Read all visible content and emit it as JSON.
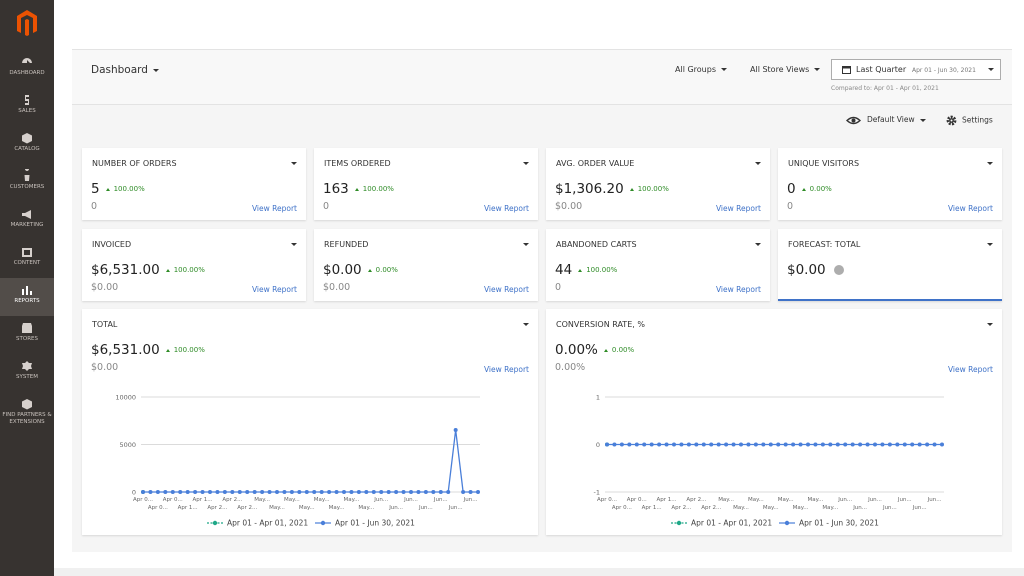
{
  "sidebar": {
    "items": [
      "DASHBOARD",
      "SALES",
      "CATALOG",
      "CUSTOMERS",
      "MARKETING",
      "CONTENT",
      "REPORTS",
      "STORES",
      "SYSTEM",
      "FIND PARTNERS & EXTENSIONS"
    ],
    "active": 6
  },
  "header": {
    "title": "Dashboard",
    "customer_group": "All Groups",
    "store_view": "All Store Views",
    "period": "Last Quarter",
    "date_range": "Apr 01 - Jun 30, 2021",
    "comparison": "Compared to: Apr 01 - Apr 01, 2021"
  },
  "toolbar": {
    "view": "Default View",
    "settings": "Settings"
  },
  "cards": [
    {
      "title": "NUMBER OF ORDERS",
      "value": "5",
      "change": "100.00%",
      "previous": "0",
      "link": "View Report"
    },
    {
      "title": "ITEMS ORDERED",
      "value": "163",
      "change": "100.00%",
      "previous": "0",
      "link": "View Report"
    },
    {
      "title": "AVG. ORDER VALUE",
      "value": "$1,306.20",
      "change": "100.00%",
      "previous": "$0.00",
      "link": "View Report"
    },
    {
      "title": "UNIQUE VISITORS",
      "value": "0",
      "change": "0.00%",
      "previous": "0",
      "link": "View Report"
    },
    {
      "title": "INVOICED",
      "value": "$6,531.00",
      "change": "100.00%",
      "previous": "$0.00",
      "link": "View Report"
    },
    {
      "title": "REFUNDED",
      "value": "$0.00",
      "change": "0.00%",
      "previous": "$0.00",
      "link": "View Report"
    },
    {
      "title": "ABANDONED CARTS",
      "value": "44",
      "change": "100.00%",
      "previous": "0",
      "link": "View Report"
    },
    {
      "title": "FORECAST: TOTAL",
      "value": "$0.00"
    }
  ],
  "charts": [
    {
      "type": "line",
      "title": "TOTAL",
      "value": "$6,531.00",
      "change": "100.00%",
      "previous": "$0.00",
      "link": "View Report",
      "categories": [
        "Apr 0...",
        null,
        "Apr 0...",
        null,
        "Apr 0...",
        null,
        "Apr 1...",
        null,
        "Apr 1...",
        null,
        "Apr 2...",
        null,
        "Apr 2...",
        null,
        "Apr 2...",
        null,
        "May...",
        null,
        "May...",
        null,
        "May...",
        null,
        "May...",
        null,
        "May...",
        null,
        "May...",
        null,
        "May...",
        null,
        "May...",
        null,
        "Jun...",
        null,
        "Jun...",
        null,
        "Jun...",
        null,
        "Jun...",
        null,
        "Jun...",
        null,
        "Jun...",
        null,
        "Jun...",
        null
      ],
      "ylim": [
        0,
        10000
      ],
      "yticks": [
        0,
        5000,
        10000
      ],
      "grid": true,
      "series": [
        {
          "name": "Apr 01 - Apr 01, 2021",
          "color": "#1fa888",
          "values": [
            0,
            null,
            null,
            null,
            null,
            null,
            null,
            null,
            null,
            null,
            null,
            null,
            null,
            null,
            null,
            null,
            null,
            null,
            null,
            null,
            null,
            null,
            null,
            null,
            null,
            null,
            null,
            null,
            null,
            null,
            null,
            null,
            null,
            null,
            null,
            null,
            null,
            null,
            null,
            null,
            null,
            null,
            null,
            null,
            null,
            null
          ]
        },
        {
          "name": "Apr 01 - Jun 30, 2021",
          "color": "#4a7fd9",
          "values": [
            0,
            0,
            0,
            0,
            0,
            0,
            0,
            0,
            0,
            0,
            0,
            0,
            0,
            0,
            0,
            0,
            0,
            0,
            0,
            0,
            0,
            0,
            0,
            0,
            0,
            0,
            0,
            0,
            0,
            0,
            0,
            0,
            0,
            0,
            0,
            0,
            0,
            0,
            0,
            0,
            0,
            0,
            6531,
            0,
            0,
            0
          ]
        }
      ]
    },
    {
      "type": "line",
      "title": "CONVERSION RATE, %",
      "value": "0.00%",
      "change": "0.00%",
      "previous": "0.00%",
      "link": "View Report",
      "categories": [
        "Apr 0...",
        null,
        "Apr 0...",
        null,
        "Apr 0...",
        null,
        "Apr 1...",
        null,
        "Apr 1...",
        null,
        "Apr 2...",
        null,
        "Apr 2...",
        null,
        "Apr 2...",
        null,
        "May...",
        null,
        "May...",
        null,
        "May...",
        null,
        "May...",
        null,
        "May...",
        null,
        "May...",
        null,
        "May...",
        null,
        "May...",
        null,
        "Jun...",
        null,
        "Jun...",
        null,
        "Jun...",
        null,
        "Jun...",
        null,
        "Jun...",
        null,
        "Jun...",
        null,
        "Jun...",
        null
      ],
      "ylim": [
        -1,
        1
      ],
      "yticks": [
        -1,
        0,
        1
      ],
      "grid": true,
      "series": [
        {
          "name": "Apr 01 - Apr 01, 2021",
          "color": "#1fa888",
          "values": [
            0,
            null,
            null,
            null,
            null,
            null,
            null,
            null,
            null,
            null,
            null,
            null,
            null,
            null,
            null,
            null,
            null,
            null,
            null,
            null,
            null,
            null,
            null,
            null,
            null,
            null,
            null,
            null,
            null,
            null,
            null,
            null,
            null,
            null,
            null,
            null,
            null,
            null,
            null,
            null,
            null,
            null,
            null,
            null,
            null,
            null
          ]
        },
        {
          "name": "Apr 01 - Jun 30, 2021",
          "color": "#4a7fd9",
          "values": [
            0,
            0,
            0,
            0,
            0,
            0,
            0,
            0,
            0,
            0,
            0,
            0,
            0,
            0,
            0,
            0,
            0,
            0,
            0,
            0,
            0,
            0,
            0,
            0,
            0,
            0,
            0,
            0,
            0,
            0,
            0,
            0,
            0,
            0,
            0,
            0,
            0,
            0,
            0,
            0,
            0,
            0,
            0,
            0,
            0,
            0
          ]
        }
      ]
    }
  ]
}
